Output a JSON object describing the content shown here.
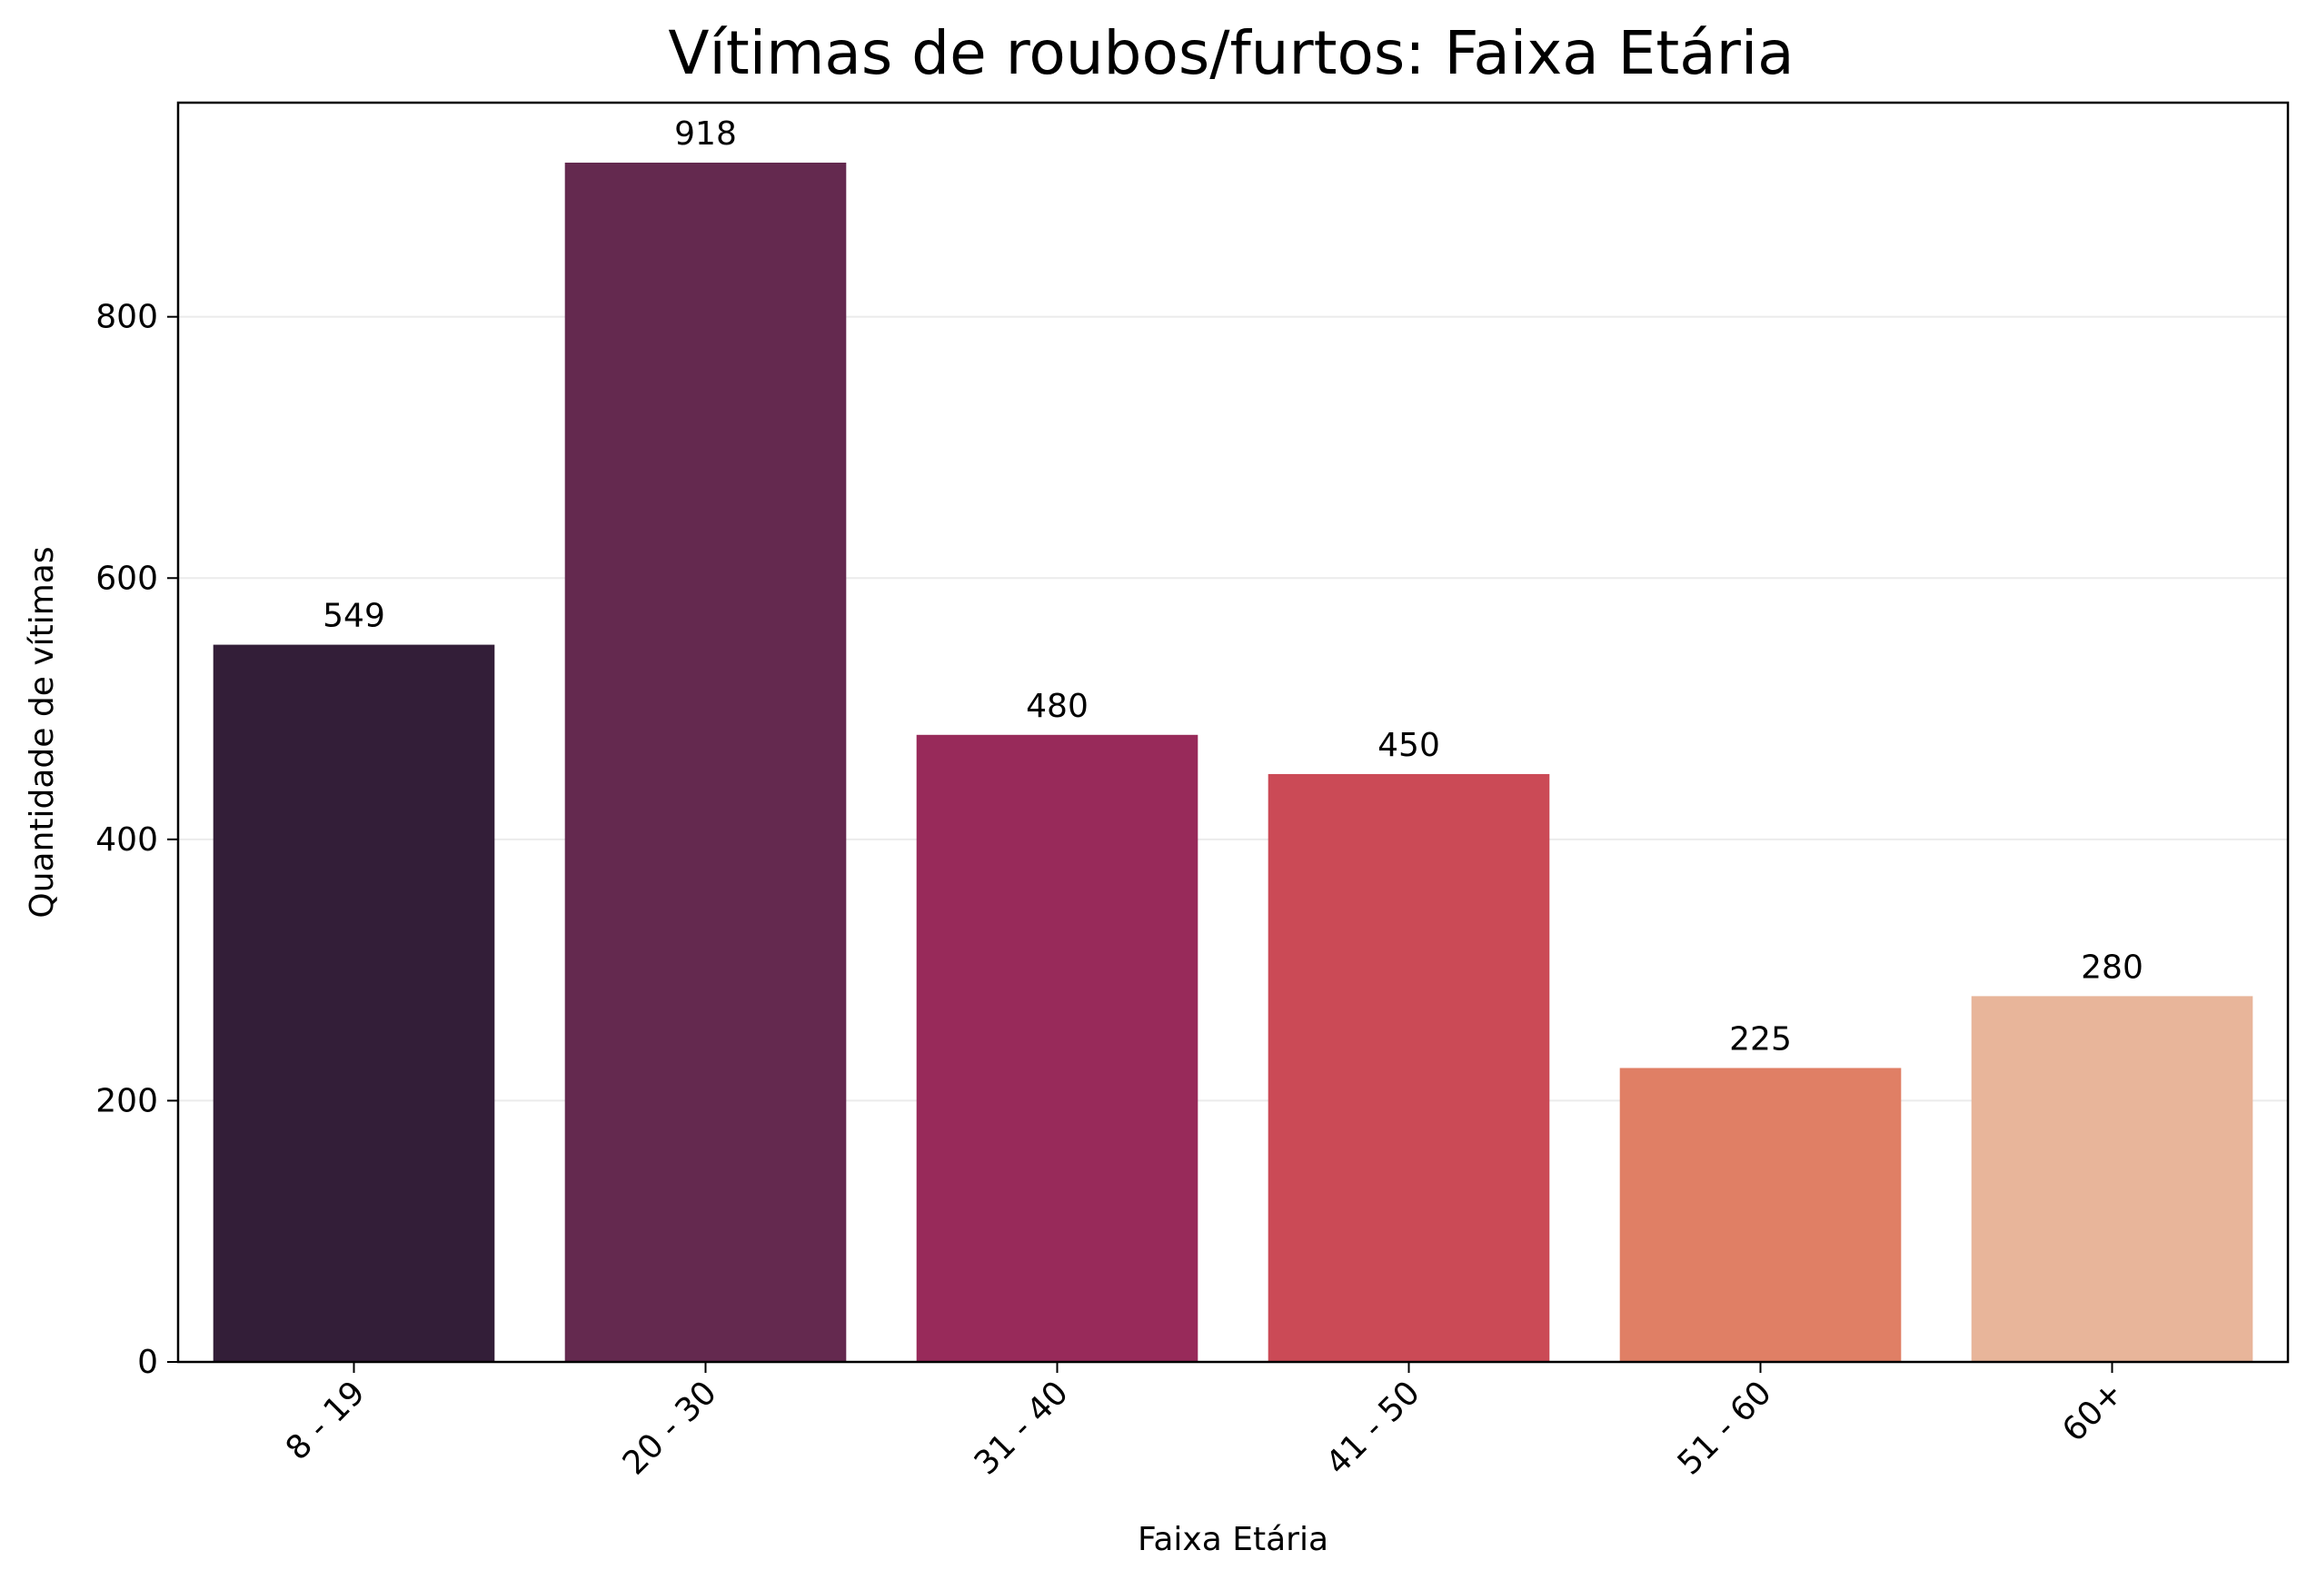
{
  "chart_data": {
    "type": "bar",
    "title": "Vítimas de roubos/furtos: Faixa Etária",
    "xlabel": "Faixa Etária",
    "ylabel": "Quantidade de vítimas",
    "categories": [
      "8 - 19",
      "20 - 30",
      "31 - 40",
      "41 - 50",
      "51 - 60",
      "60+"
    ],
    "values": [
      549,
      918,
      480,
      450,
      225,
      280
    ],
    "data_labels": [
      "549",
      "918",
      "480",
      "450",
      "225",
      "280"
    ],
    "colors": [
      "#331e38",
      "#64294f",
      "#982a5a",
      "#cb4a56",
      "#e07f65",
      "#e8b59a"
    ],
    "ylim": [
      0,
      963.9
    ],
    "yticks": [
      0,
      200,
      400,
      600,
      800
    ],
    "ytick_labels": [
      "0",
      "200",
      "400",
      "600",
      "800"
    ],
    "grid": "y",
    "grid_color": "#ebebeb",
    "x_tick_rotation_deg": 45
  }
}
